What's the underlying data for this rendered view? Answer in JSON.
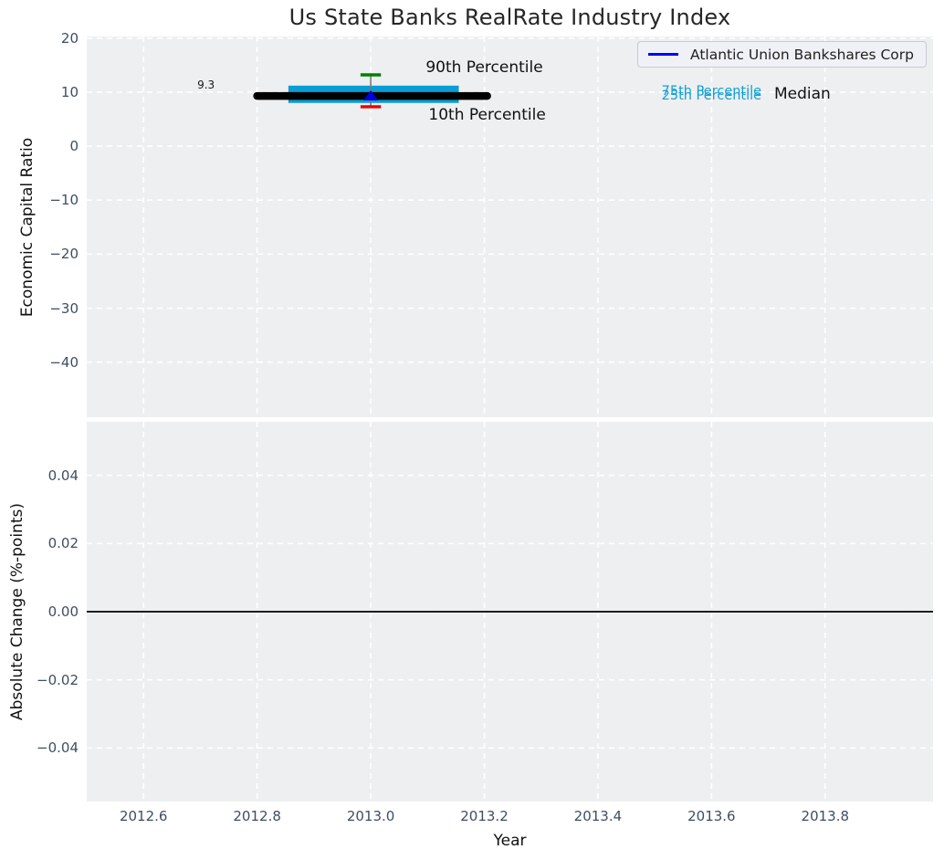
{
  "figure": {
    "plot_background": "#edeff1",
    "grid_color": "#ffffff",
    "tick_label_color": "#3d4e63",
    "title_color": "#262626"
  },
  "legend": {
    "position": "top-right",
    "items": [
      {
        "label": "Atlantic Union Bankshares Corp",
        "color": "#0000ff"
      }
    ]
  },
  "chart_data": [
    {
      "type": "boxplot",
      "title": "Us State Banks RealRate Industry Index",
      "ylabel": "Economic Capital Ratio",
      "xlim": [
        2012.5,
        2013.99
      ],
      "ylim": [
        -50.2,
        20.3
      ],
      "grid": true,
      "xticks": {
        "values": [
          2012.6,
          2012.8,
          2013.0,
          2013.2,
          2013.4,
          2013.6,
          2013.8
        ],
        "labels": [
          "2012.6",
          "2012.8",
          "2013.0",
          "2013.2",
          "2013.4",
          "2013.6",
          "2013.8"
        ],
        "labels_visible": false
      },
      "yticks": {
        "values": [
          20,
          10,
          0,
          -10,
          -20,
          -30,
          -40
        ],
        "labels": [
          "20",
          "10",
          "0",
          "−10",
          "−20",
          "−30",
          "−40"
        ]
      },
      "box": {
        "year": 2013.0,
        "median": 9.3,
        "p75": 11.2,
        "p25": 8.0,
        "p90": 13.2,
        "p10": 7.3,
        "median_line_span": [
          2012.8,
          2013.205
        ],
        "box_span": [
          2012.855,
          2013.155
        ],
        "whisker_halfwidth": 0.018,
        "company_marker": {
          "name": "Atlantic Union Bankshares Corp",
          "value": 9.4,
          "shape": "triangle-up",
          "color": "#0000dd"
        },
        "colors": {
          "box": "#099dd3",
          "median": "#000000",
          "p90": "#008000",
          "p10": "#e80000",
          "connector": "#7a7a7a"
        }
      },
      "annotations": [
        {
          "text": "9.3",
          "x": 2012.71,
          "y": 11.3,
          "font_size": 12,
          "color": "#1a1a1a"
        },
        {
          "text": "90th Percentile",
          "x": 2013.2,
          "y": 14.6,
          "font_size": 17,
          "color": "#111111"
        },
        {
          "text": "10th Percentile",
          "x": 2013.205,
          "y": 5.7,
          "font_size": 17,
          "color": "#111111"
        },
        {
          "text": "75th Percentile",
          "x": 2013.6,
          "y": 10.1,
          "font_size": 14.5,
          "color": "#13a0d6"
        },
        {
          "text": "25th Percentile",
          "x": 2013.6,
          "y": 9.35,
          "font_size": 14.5,
          "color": "#13a0d6"
        },
        {
          "text": "Median",
          "x": 2013.76,
          "y": 9.6,
          "font_size": 17,
          "color": "#111111"
        }
      ]
    },
    {
      "type": "line",
      "ylabel": "Absolute Change (%-points)",
      "xlabel": "Year",
      "xlim": [
        2012.5,
        2013.99
      ],
      "ylim": [
        -0.0557,
        0.0557
      ],
      "grid": true,
      "xticks": {
        "values": [
          2012.6,
          2012.8,
          2013.0,
          2013.2,
          2013.4,
          2013.6,
          2013.8
        ],
        "labels": [
          "2012.6",
          "2012.8",
          "2013.0",
          "2013.2",
          "2013.4",
          "2013.6",
          "2013.8"
        ],
        "labels_visible": true
      },
      "yticks": {
        "values": [
          0.04,
          0.02,
          0.0,
          -0.02,
          -0.04
        ],
        "labels": [
          "0.04",
          "0.02",
          "0.00",
          "−0.02",
          "−0.04"
        ]
      },
      "zero_line": {
        "y": 0.0,
        "color": "#000000"
      }
    }
  ]
}
